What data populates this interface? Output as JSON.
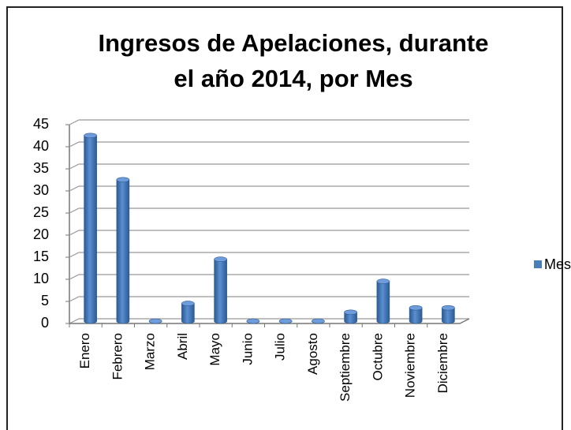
{
  "chart_data": {
    "type": "bar",
    "title": "Ingresos de Apelaciones, durante el año 2014, por Mes",
    "categories": [
      "Enero",
      "Febrero",
      "Marzo",
      "Abril",
      "Mayo",
      "Junio",
      "Julio",
      "Agosto",
      "Septiembre",
      "Octubre",
      "Noviembre",
      "Diciembre"
    ],
    "series": [
      {
        "name": "Mes",
        "color": "#4a7ebb",
        "values": [
          42,
          32,
          0,
          4,
          14,
          0,
          0,
          0,
          2,
          9,
          3,
          3
        ]
      }
    ],
    "ylim": [
      0,
      45
    ],
    "yticks": [
      0,
      5,
      10,
      15,
      20,
      25,
      30,
      35,
      40,
      45
    ],
    "grid": true,
    "legend": "right"
  }
}
